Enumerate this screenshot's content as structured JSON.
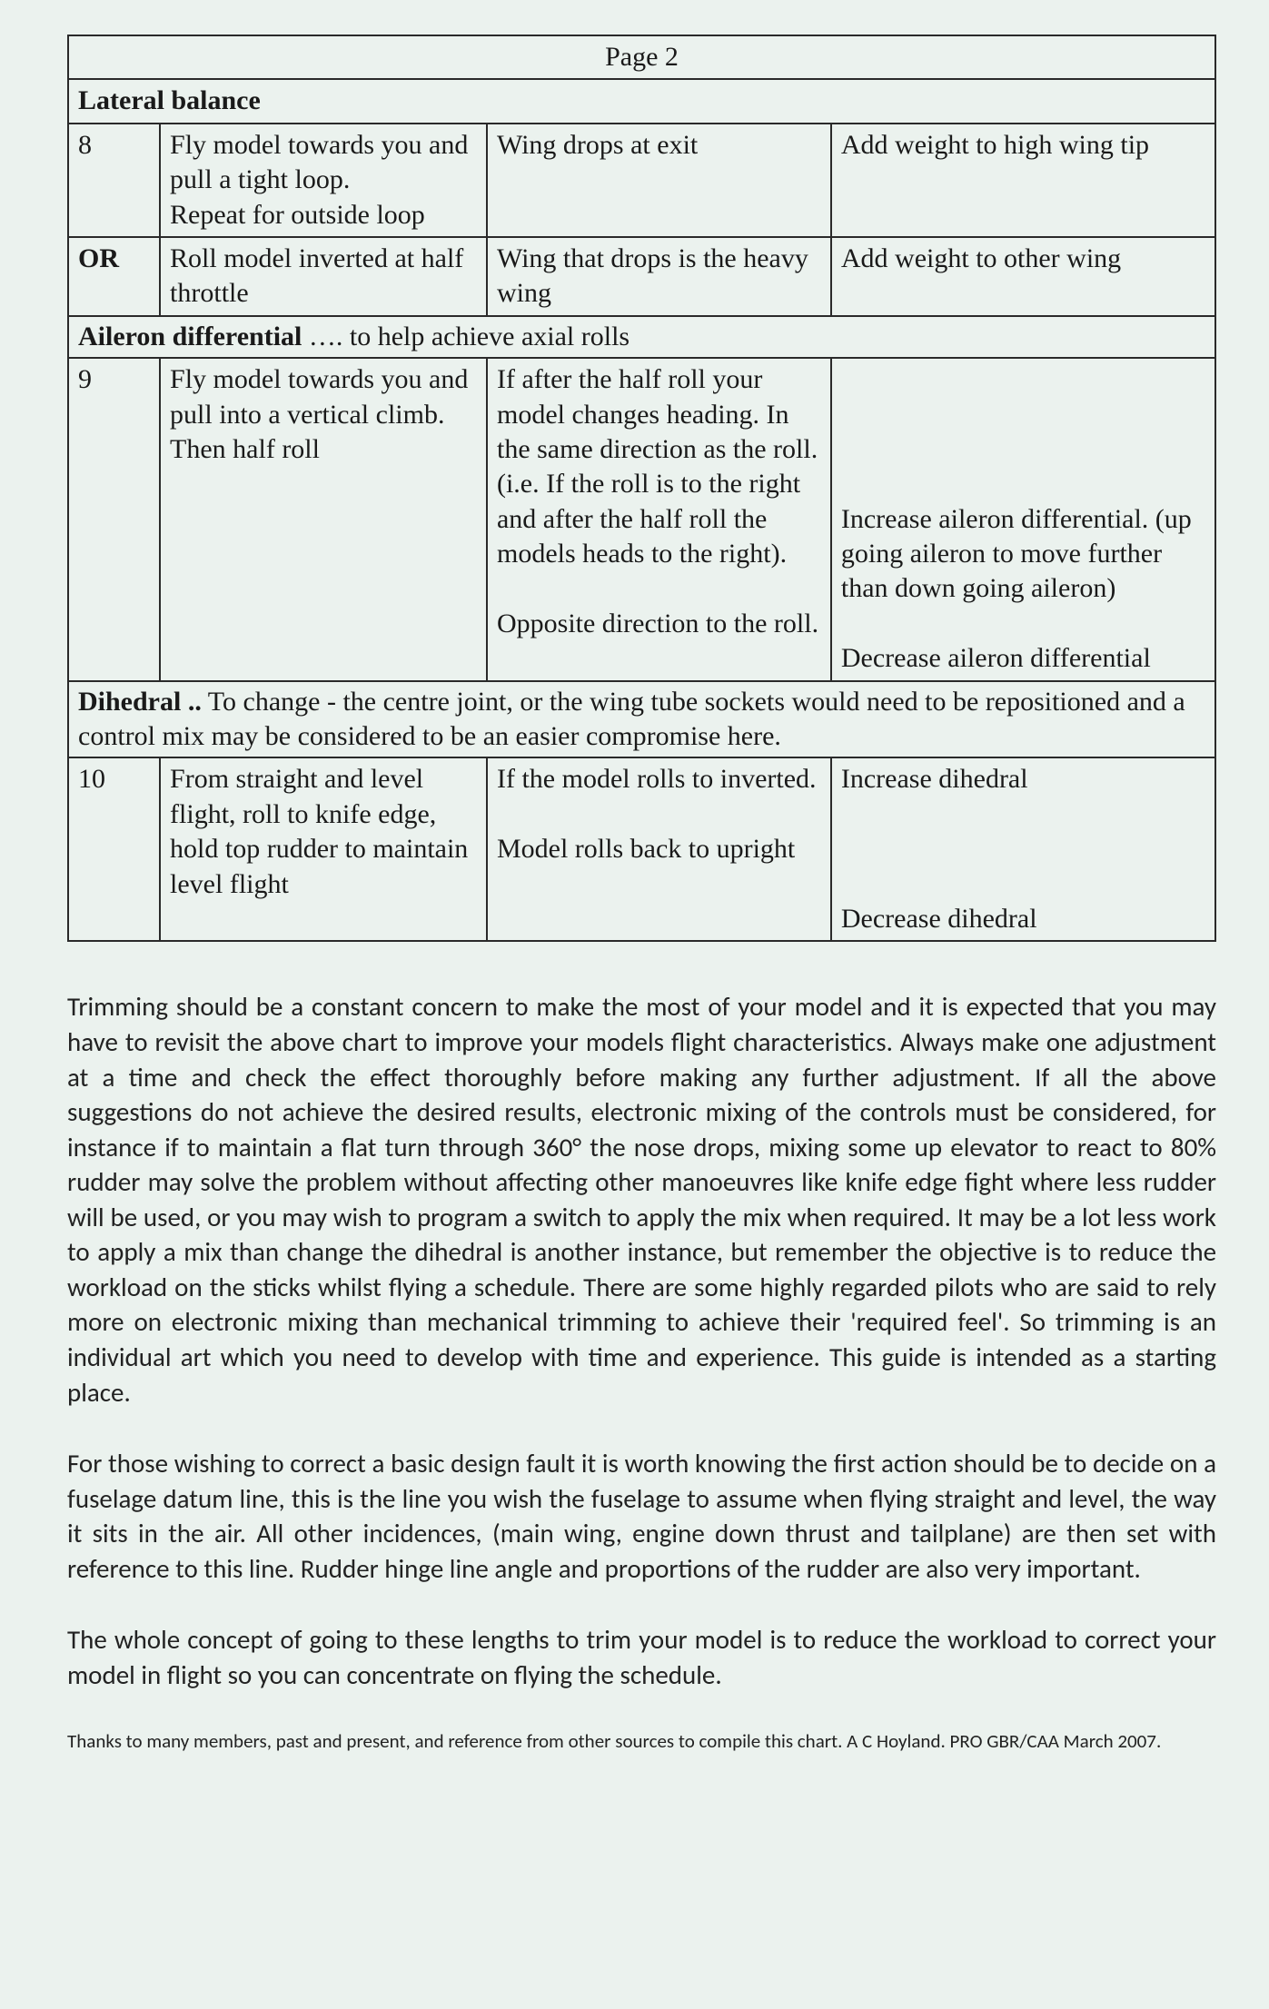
{
  "page_title": "Page 2",
  "section_lateral": "Lateral balance",
  "row8_num": "8",
  "row8_proc": "Fly model towards you and pull a tight loop.\nRepeat for outside loop",
  "row8_obs": "Wing drops at exit",
  "row8_act": "Add weight to high wing tip",
  "row_or_num": "OR",
  "row_or_proc": "Roll model inverted at half throttle",
  "row_or_obs": "Wing that drops is the heavy wing",
  "row_or_act": "Add weight to other wing",
  "section_aileron_bold": "Aileron differential",
  "section_aileron_rest": " …. to help achieve axial rolls",
  "row9_num": "9",
  "row9_proc": "Fly model towards you and pull into a vertical climb. Then half roll",
  "row9_obs": "If after the half roll your model changes heading. In the same direction as the roll.  (i.e. If the roll is to the right and after the half roll the models heads to the right).\n\nOpposite direction to the roll.",
  "row9_act": "\n\n\n\nIncrease aileron differential. (up going aileron to move further than down going aileron)\n\nDecrease aileron differential",
  "section_dihedral_bold": "Dihedral ..",
  "section_dihedral_rest": " To change - the centre joint, or the wing tube sockets would need to be repositioned and a control mix may be considered to be an easier compromise here.",
  "row10_num": "10",
  "row10_proc": "From straight and level flight, roll to knife edge, hold top rudder to maintain level flight",
  "row10_obs": "If the model rolls to inverted.\n\nModel rolls back to upright",
  "row10_act": "Increase dihedral\n\n\n\nDecrease dihedral\n",
  "para1": "Trimming should be a constant concern to make the most of your model and it is expected that you may have to revisit the above chart to improve your models flight characteristics.  Always make one adjustment at a time and check the effect thoroughly before making any further adjustment.  If all the above suggestions do not achieve the desired results, electronic mixing of the controls must be considered, for instance if to maintain a flat turn through 360° the nose drops, mixing some up elevator to react to 80% rudder may solve the problem without affecting other manoeuvres like knife edge fight where less rudder will be used, or you may wish to program a switch to apply the mix when required.  It may be a lot less work to apply a mix than change the dihedral is another instance, but remember the objective is to reduce the workload on the sticks whilst flying a schedule.  There are some highly regarded pilots who are said to rely more on electronic mixing than mechanical trimming to achieve their 'required feel'.  So trimming is an individual art which you need to develop with time and experience. This guide is intended as a starting place.",
  "para2": "For those wishing to correct a basic design fault it is worth knowing the first action should be to decide on a fuselage datum line, this is the line you wish the fuselage to assume when flying straight and level, the way it sits in the air.  All other incidences, (main wing, engine down thrust and tailplane) are then set with reference to this line.  Rudder hinge line angle and proportions of the rudder are also very important.",
  "para3": "The whole concept of going to these lengths to trim your model is to reduce the workload to correct your model in flight so you can concentrate on flying the schedule.",
  "credit": "Thanks to many members, past and present, and reference from other sources to compile this chart. A C Hoyland.  PRO GBR/CAA March 2007."
}
